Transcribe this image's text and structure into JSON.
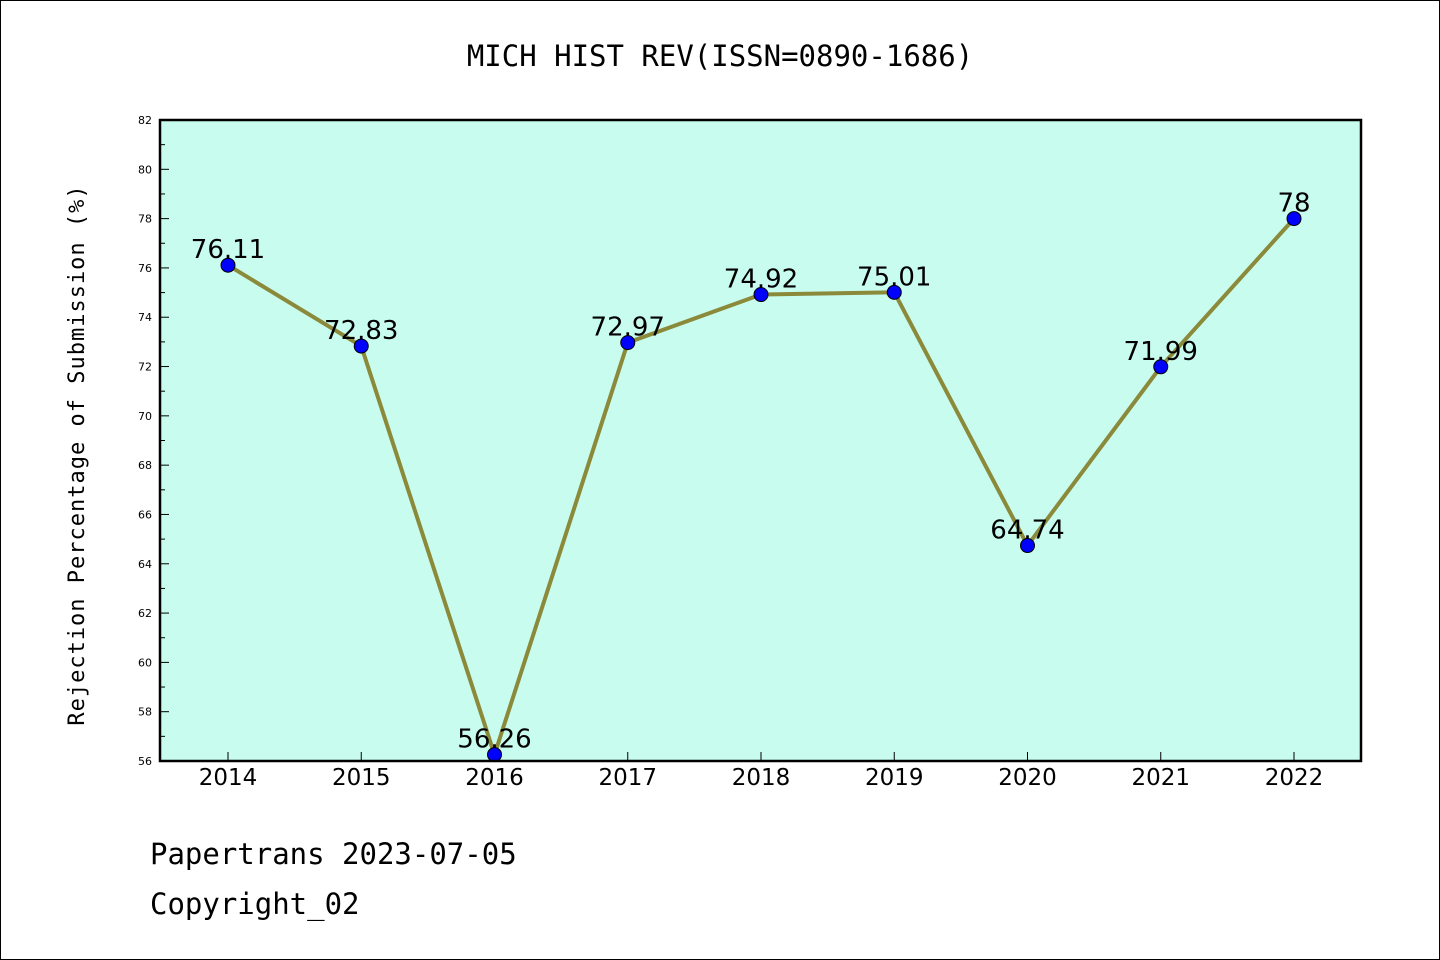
{
  "chart_data": {
    "type": "line",
    "title": "MICH HIST REV(ISSN=0890-1686)",
    "ylabel": "Rejection Percentage of Submission (%)",
    "xlabel": "",
    "categories": [
      "2014",
      "2015",
      "2016",
      "2017",
      "2018",
      "2019",
      "2020",
      "2021",
      "2022"
    ],
    "values": [
      76.11,
      72.83,
      56.26,
      72.97,
      74.92,
      75.01,
      64.74,
      71.99,
      78
    ],
    "data_labels": [
      "76.11",
      "72.83",
      "56.26",
      "72.97",
      "74.92",
      "75.01",
      "64.74",
      "71.99",
      "78"
    ],
    "ylim": [
      56,
      82
    ],
    "yticks": [
      56,
      58,
      60,
      62,
      64,
      66,
      68,
      70,
      72,
      74,
      76,
      78,
      80,
      82
    ],
    "grid": false,
    "legend": "none",
    "colors": {
      "plot_background": "#c8fcee",
      "line": "#8b8a3a",
      "marker": "#0000ff"
    }
  },
  "footer": {
    "line1": "Papertrans 2023-07-05",
    "line2": "Copyright_02"
  }
}
